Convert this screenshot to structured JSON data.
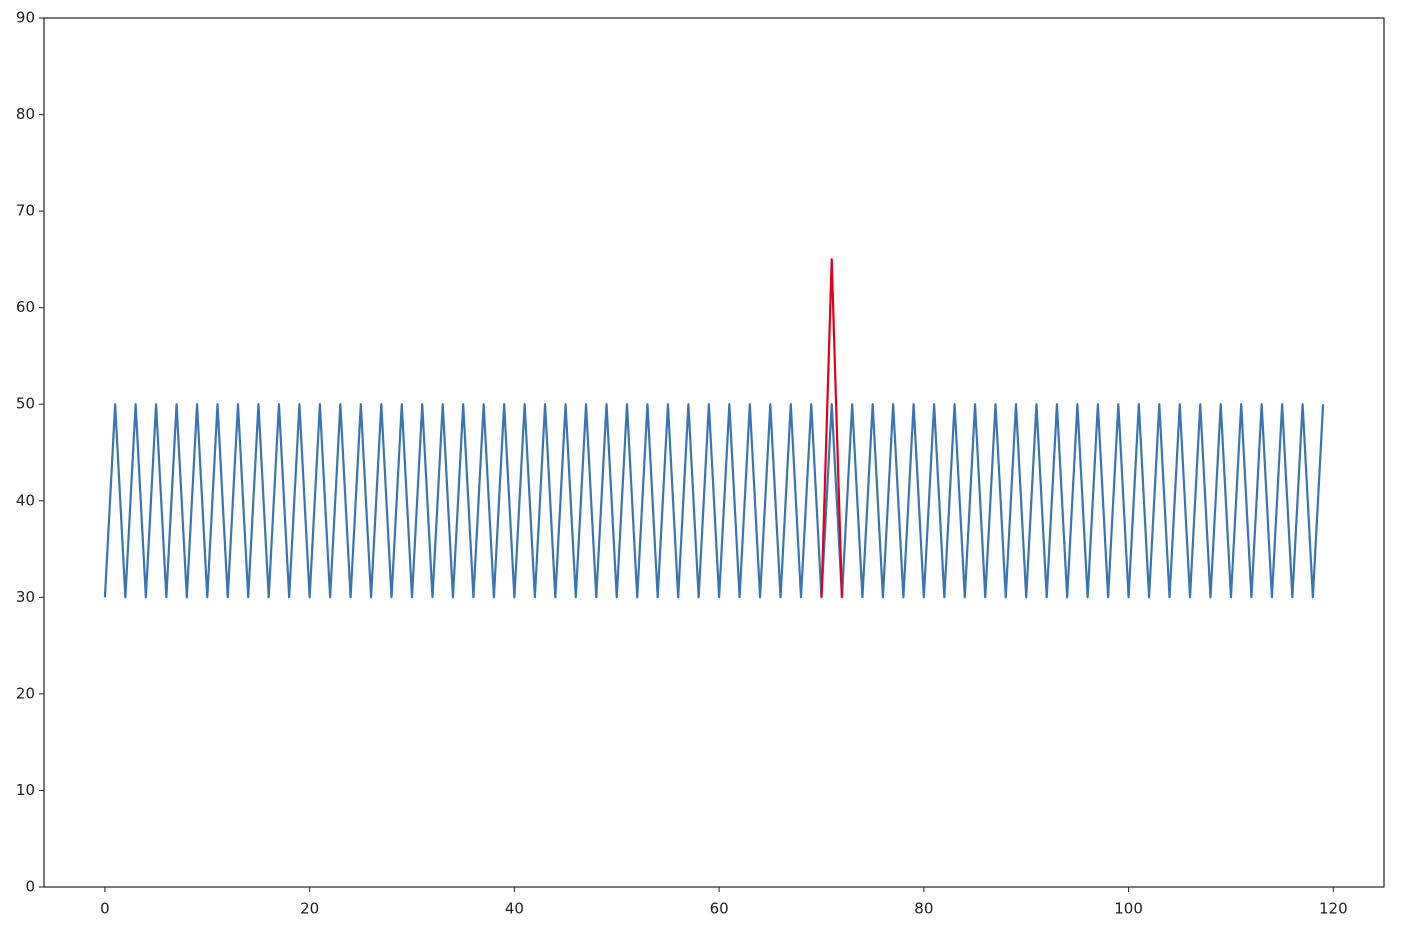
{
  "chart_data": {
    "type": "line",
    "series": [
      {
        "color": "#3b75af",
        "x": [
          0,
          1,
          2,
          3,
          4,
          5,
          6,
          7,
          8,
          9,
          10,
          11,
          12,
          13,
          14,
          15,
          16,
          17,
          18,
          19,
          20,
          21,
          22,
          23,
          24,
          25,
          26,
          27,
          28,
          29,
          30,
          31,
          32,
          33,
          34,
          35,
          36,
          37,
          38,
          39,
          40,
          41,
          42,
          43,
          44,
          45,
          46,
          47,
          48,
          49,
          50,
          51,
          52,
          53,
          54,
          55,
          56,
          57,
          58,
          59,
          60,
          61,
          62,
          63,
          64,
          65,
          66,
          67,
          68,
          69,
          70,
          71,
          72,
          73,
          74,
          75,
          76,
          77,
          78,
          79,
          80,
          81,
          82,
          83,
          84,
          85,
          86,
          87,
          88,
          89,
          90,
          91,
          92,
          93,
          94,
          95,
          96,
          97,
          98,
          99,
          100,
          101,
          102,
          103,
          104,
          105,
          106,
          107,
          108,
          109,
          110,
          111,
          112,
          113,
          114,
          115,
          116,
          117,
          118,
          119
        ],
        "values": [
          30,
          50,
          30,
          50,
          30,
          50,
          30,
          50,
          30,
          50,
          30,
          50,
          30,
          50,
          30,
          50,
          30,
          50,
          30,
          50,
          30,
          50,
          30,
          50,
          30,
          50,
          30,
          50,
          30,
          50,
          30,
          50,
          30,
          50,
          30,
          50,
          30,
          50,
          30,
          50,
          30,
          50,
          30,
          50,
          30,
          50,
          30,
          50,
          30,
          50,
          30,
          50,
          30,
          50,
          30,
          50,
          30,
          50,
          30,
          50,
          30,
          50,
          30,
          50,
          30,
          50,
          30,
          50,
          30,
          50,
          30,
          50,
          30,
          50,
          30,
          50,
          30,
          50,
          30,
          50,
          30,
          50,
          30,
          50,
          30,
          50,
          30,
          50,
          30,
          50,
          30,
          50,
          30,
          50,
          30,
          50,
          30,
          50,
          30,
          50,
          30,
          50,
          30,
          50,
          30,
          50,
          30,
          50,
          30,
          50,
          30,
          50,
          30,
          50,
          30,
          50,
          30,
          50,
          30,
          50
        ]
      },
      {
        "color": "#e0001e",
        "x": [
          70,
          71,
          72
        ],
        "values": [
          30,
          65,
          30
        ]
      }
    ],
    "xlim": [
      -5.95,
      124.95
    ],
    "xticks": [
      0,
      20,
      40,
      60,
      80,
      100,
      120
    ],
    "ylim": [
      0,
      90
    ],
    "yticks": [
      0,
      10,
      20,
      30,
      40,
      50,
      60,
      70,
      80,
      90
    ]
  }
}
